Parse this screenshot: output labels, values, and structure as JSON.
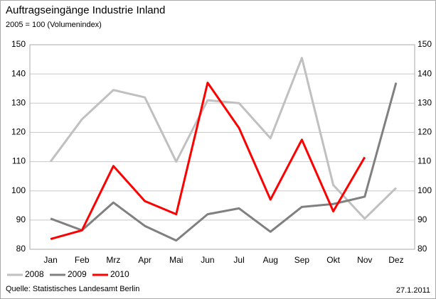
{
  "chart_data": {
    "type": "line",
    "title": "Auftragseingänge Industrie Inland",
    "subtitle": "2005 = 100 (Volumenindex)",
    "source": "Quelle: Statistisches Landesamt Berlin",
    "date": "27.1.2011",
    "categories": [
      "Jan",
      "Feb",
      "Mrz",
      "Apr",
      "Mai",
      "Jun",
      "Jul",
      "Aug",
      "Sep",
      "Okt",
      "Nov",
      "Dez"
    ],
    "series": [
      {
        "name": "2008",
        "color": "#c0c0c0",
        "values": [
          110,
          124.5,
          134.5,
          132,
          110,
          131,
          130,
          118,
          145.5,
          102,
          90.5,
          101
        ]
      },
      {
        "name": "2009",
        "color": "#808080",
        "values": [
          90.5,
          86.5,
          96,
          88,
          83,
          92,
          94,
          86,
          94.5,
          95.5,
          98,
          137
        ]
      },
      {
        "name": "2010",
        "color": "#ff0000",
        "values": [
          83.5,
          86.5,
          108.5,
          96.5,
          92,
          137,
          121.5,
          97,
          117.5,
          93,
          111.5,
          null
        ]
      }
    ],
    "ylim": [
      80,
      150
    ],
    "yticks": [
      80,
      90,
      100,
      110,
      120,
      130,
      140,
      150
    ],
    "y2lim": [
      80,
      150
    ],
    "y2ticks": [
      80,
      90,
      100,
      110,
      120,
      130,
      140,
      150
    ],
    "grid": true
  }
}
